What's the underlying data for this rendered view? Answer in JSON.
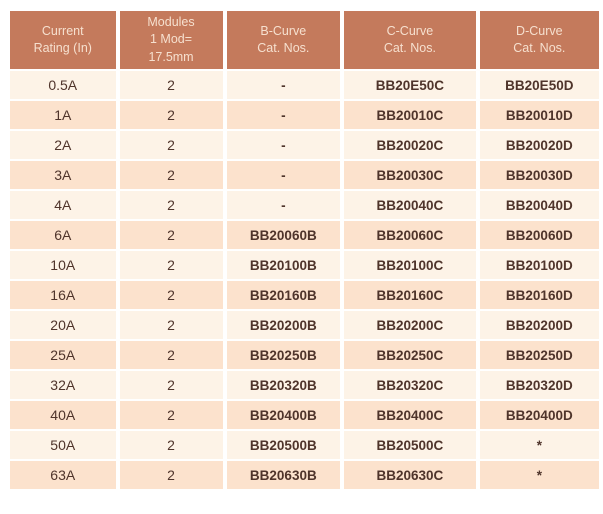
{
  "table": {
    "columns": [
      {
        "label": "Current\nRating (In)"
      },
      {
        "label": "Modules\n1 Mod=\n17.5mm"
      },
      {
        "label": "B-Curve\nCat. Nos."
      },
      {
        "label": "C-Curve\nCat. Nos."
      },
      {
        "label": "D-Curve\nCat. Nos."
      }
    ],
    "rows": [
      [
        "0.5A",
        "2",
        "-",
        "BB20E50C",
        "BB20E50D"
      ],
      [
        "1A",
        "2",
        "-",
        "BB20010C",
        "BB20010D"
      ],
      [
        "2A",
        "2",
        "-",
        "BB20020C",
        "BB20020D"
      ],
      [
        "3A",
        "2",
        "-",
        "BB20030C",
        "BB20030D"
      ],
      [
        "4A",
        "2",
        "-",
        "BB20040C",
        "BB20040D"
      ],
      [
        "6A",
        "2",
        "BB20060B",
        "BB20060C",
        "BB20060D"
      ],
      [
        "10A",
        "2",
        "BB20100B",
        "BB20100C",
        "BB20100D"
      ],
      [
        "16A",
        "2",
        "BB20160B",
        "BB20160C",
        "BB20160D"
      ],
      [
        "20A",
        "2",
        "BB20200B",
        "BB20200C",
        "BB20200D"
      ],
      [
        "25A",
        "2",
        "BB20250B",
        "BB20250C",
        "BB20250D"
      ],
      [
        "32A",
        "2",
        "BB20320B",
        "BB20320C",
        "BB20320D"
      ],
      [
        "40A",
        "2",
        "BB20400B",
        "BB20400C",
        "BB20400D"
      ],
      [
        "50A",
        "2",
        "BB20500B",
        "BB20500C",
        "*"
      ],
      [
        "63A",
        "2",
        "BB20630B",
        "BB20630C",
        "*"
      ]
    ]
  },
  "colors": {
    "page_bg": "#ffffff",
    "header_bg": "#c47a5c",
    "header_text": "#f6e0cf",
    "row_light": "#fdf3e7",
    "row_dark": "#fce2cd",
    "body_text": "#4f342b"
  }
}
